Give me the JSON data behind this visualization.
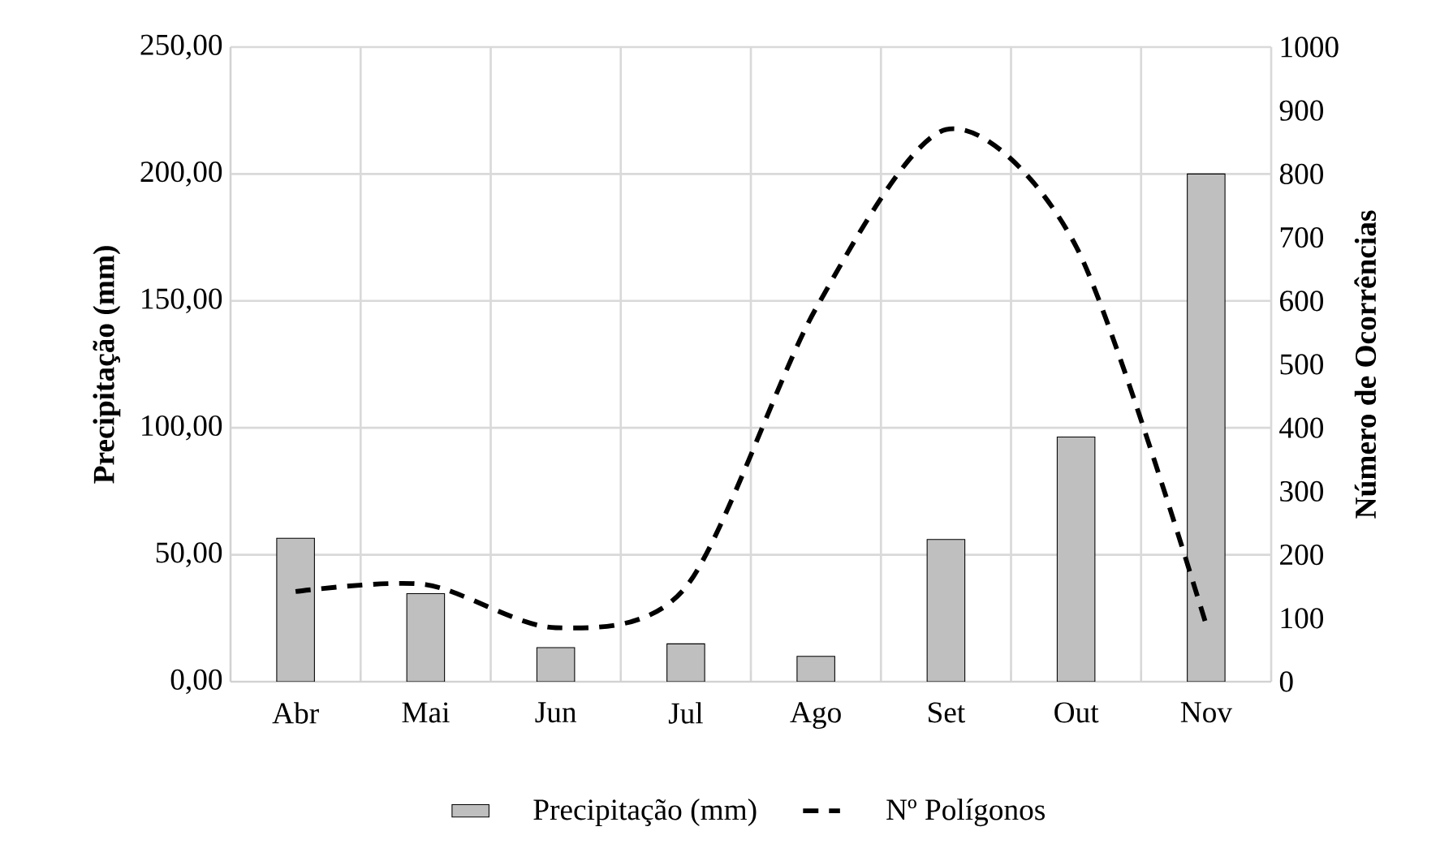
{
  "chart_data": {
    "type": "bar",
    "ylabel": "Precipitação (mm)",
    "y2label": "Número de Ocorrências",
    "categories": [
      "Abr",
      "Mai",
      "Jun",
      "Jul",
      "Ago",
      "Set",
      "Out",
      "Nov"
    ],
    "series": [
      {
        "name": "Precipitação (mm)",
        "color": "#bfbfbf",
        "values": [
          56.5,
          34.7,
          13.4,
          14.9,
          10.0,
          56.0,
          96.4,
          200.0
        ]
      },
      {
        "name": "Nº Polígonos",
        "type": "line",
        "axis": "y2",
        "color": "#000000",
        "values": [
          142,
          153,
          85,
          149,
          588,
          870,
          686,
          90
        ]
      }
    ],
    "ylim": [
      0,
      250
    ],
    "yticks": [
      {
        "value": 0,
        "label": "0,00"
      },
      {
        "value": 50,
        "label": "50,00"
      },
      {
        "value": 100,
        "label": "100,00"
      },
      {
        "value": 150,
        "label": "150,00"
      },
      {
        "value": 200,
        "label": "200,00"
      },
      {
        "value": 250,
        "label": "250,00"
      }
    ],
    "y2lim": [
      0,
      1000
    ],
    "y2ticks": [
      0,
      100,
      200,
      300,
      400,
      500,
      600,
      700,
      800,
      900,
      1000
    ],
    "grid": true,
    "legend": "bottom",
    "line_style": "dashed"
  }
}
